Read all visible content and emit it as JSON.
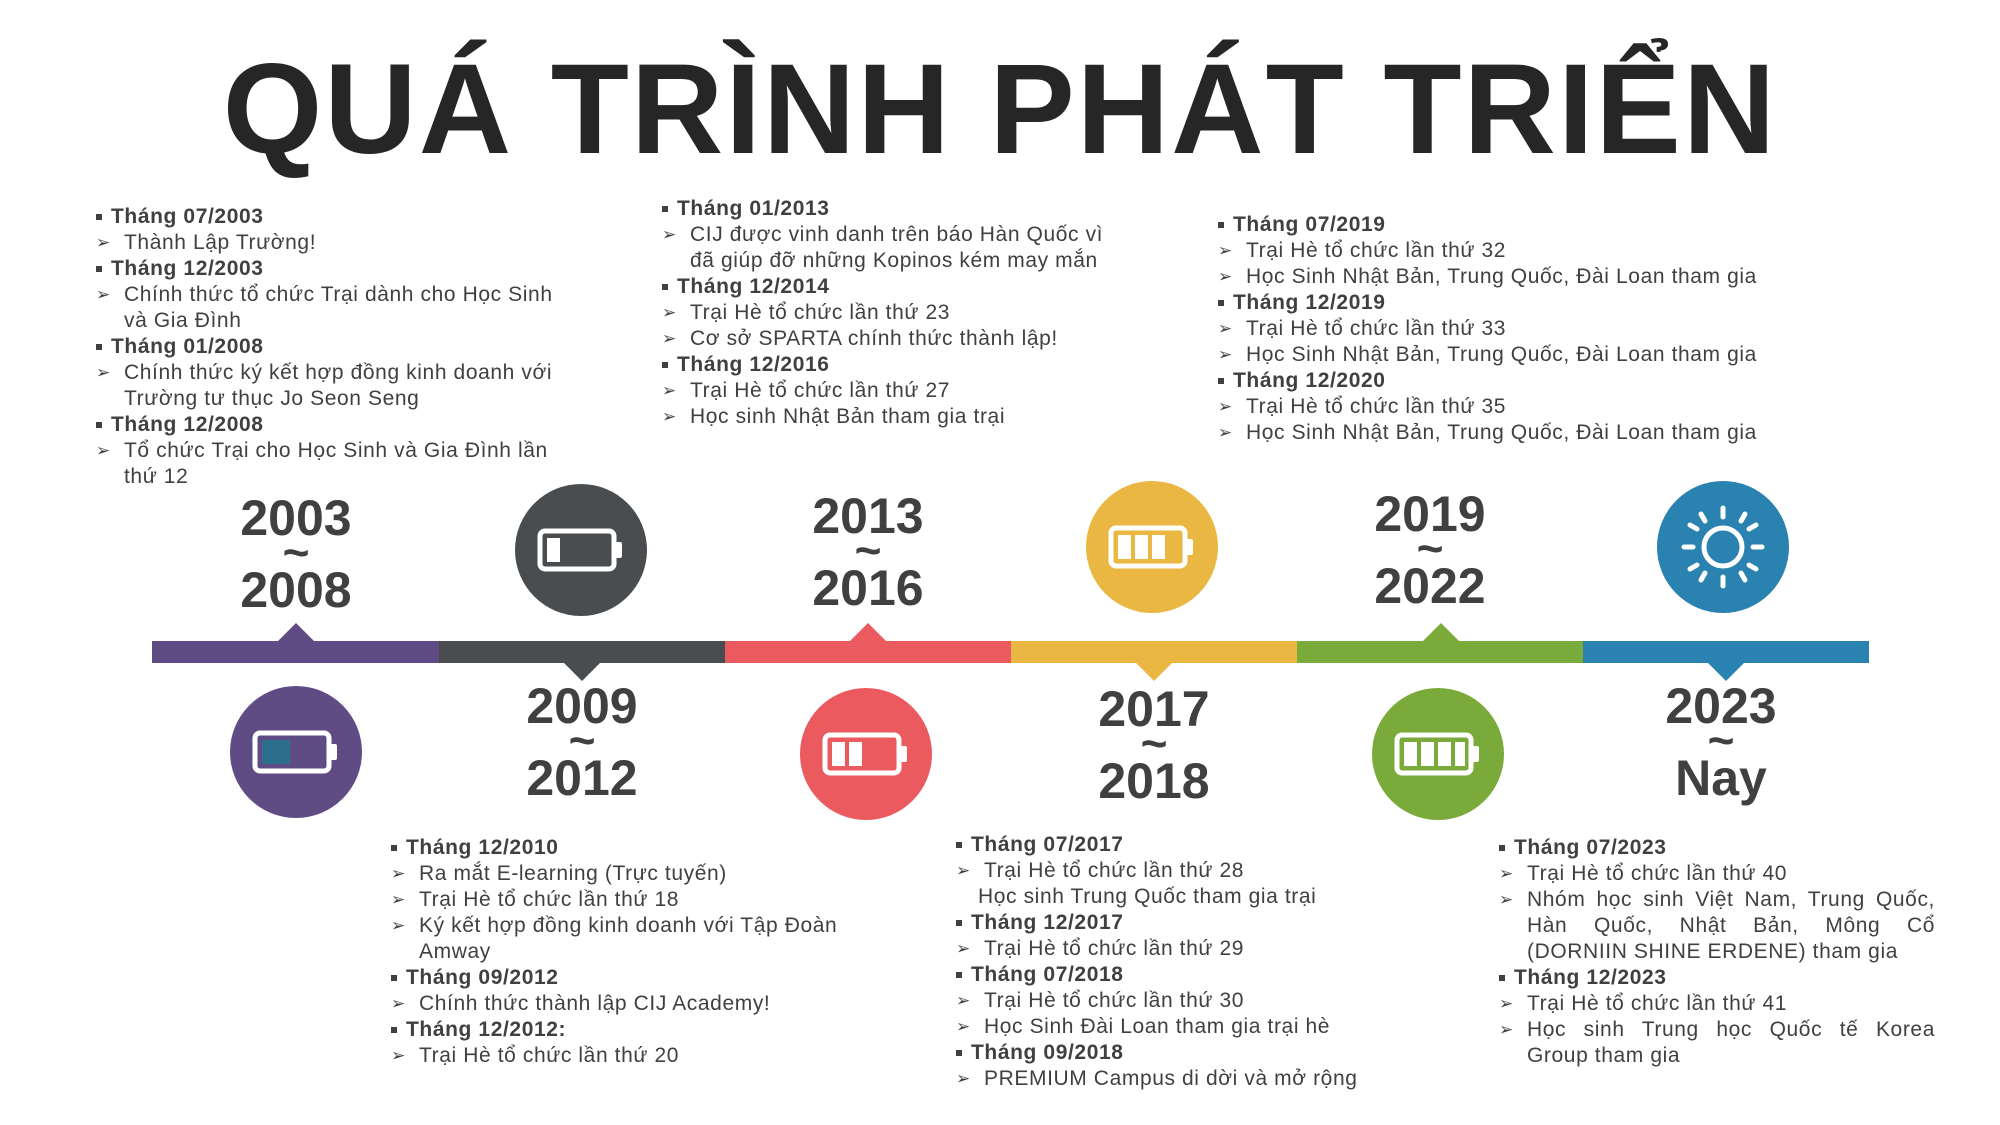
{
  "title": "QUÁ TRÌNH PHÁT TRIỂN",
  "colors": {
    "purple": "#604c84",
    "dark": "#4a4d50",
    "red": "#ea5a5e",
    "yellow": "#eab842",
    "green": "#7aab3a",
    "blue": "#2a82b0"
  },
  "periods": [
    {
      "start": "2003",
      "end": "2008",
      "icon": "battery-low-icon"
    },
    {
      "start": "2009",
      "end": "2012",
      "icon": "battery-low-icon"
    },
    {
      "start": "2013",
      "end": "2016",
      "icon": "battery-half-icon"
    },
    {
      "start": "2017",
      "end": "2018",
      "icon": "battery-three-quarter-icon"
    },
    {
      "start": "2019",
      "end": "2022",
      "icon": "battery-full-icon"
    },
    {
      "start": "2023",
      "end": "Nay",
      "icon": "sun-icon"
    }
  ],
  "tilde": "~",
  "events": {
    "p1": [
      {
        "date": "Tháng 07/2003",
        "items": [
          "Thành Lập Trường!"
        ]
      },
      {
        "date": "Tháng 12/2003",
        "items": [
          "Chính thức tổ chức Trại dành cho Học Sinh và Gia Đình"
        ]
      },
      {
        "date": "Tháng 01/2008",
        "items": [
          "Chính thức ký kết hợp đồng kinh doanh với Trường tư thục Jo Seon Seng"
        ]
      },
      {
        "date": "Tháng 12/2008",
        "items": [
          "Tổ chức Trại cho Học Sinh và Gia Đình lần thứ 12"
        ]
      }
    ],
    "p2": [
      {
        "date": "Tháng 12/2010",
        "items": [
          "Ra mắt E-learning (Trực tuyến)",
          "Trại Hè tổ chức lần thứ 18",
          "Ký kết hợp đồng kinh doanh với Tập Đoàn Amway"
        ]
      },
      {
        "date": "Tháng 09/2012",
        "items": [
          "Chính thức thành lập CIJ Academy!"
        ]
      },
      {
        "date": "Tháng 12/2012:",
        "items": [
          "Trại Hè tổ chức lần thứ 20"
        ]
      }
    ],
    "p3": [
      {
        "date": "Tháng 01/2013",
        "items": [
          "CIJ được vinh danh trên báo Hàn Quốc vì đã giúp đỡ những Kopinos kém may mắn"
        ]
      },
      {
        "date": "Tháng 12/2014",
        "items": [
          "Trại Hè tổ chức lần thứ 23",
          "Cơ sở SPARTA chính thức thành lập!"
        ]
      },
      {
        "date": "Tháng 12/2016",
        "items": [
          "Trại Hè tổ chức lần thứ 27",
          "Học sinh Nhật Bản tham gia trại"
        ]
      }
    ],
    "p4": [
      {
        "date": "Tháng  07/2017",
        "items": [
          "Trại Hè tổ chức lần thứ 28"
        ],
        "extra": "Học sinh Trung Quốc tham gia trại"
      },
      {
        "date": "Tháng 12/2017",
        "items": [
          "Trại Hè tổ chức lần thứ 29"
        ]
      },
      {
        "date": "Tháng 07/2018",
        "items": [
          "Trại Hè tổ chức lần thứ 30",
          "Học Sinh Đài Loan tham gia trại hè"
        ]
      },
      {
        "date": "Tháng 09/2018",
        "items": [
          "PREMIUM Campus di dời và mở rộng"
        ]
      }
    ],
    "p5": [
      {
        "date": "Tháng 07/2019",
        "items": [
          "Trại Hè tổ chức lần thứ 32",
          "Học Sinh Nhật Bản, Trung Quốc, Đài Loan tham gia"
        ]
      },
      {
        "date": "Tháng 12/2019",
        "items": [
          "Trại Hè tổ chức lần thứ 33",
          "Học Sinh Nhật Bản, Trung Quốc, Đài Loan tham gia"
        ]
      },
      {
        "date": "Tháng 12/2020",
        "items": [
          "Trại Hè tổ chức lần thứ 35",
          "Học Sinh Nhật Bản, Trung Quốc, Đài Loan tham gia"
        ]
      }
    ],
    "p6": [
      {
        "date": "Tháng 07/2023",
        "items": [
          "Trại Hè tổ chức lần thứ 40",
          "Nhóm học sinh Việt Nam, Trung Quốc, Hàn Quốc, Nhật Bản, Mông Cổ (DORNIIN SHINE ERDENE) tham gia"
        ]
      },
      {
        "date": "Tháng 12/2023",
        "items": [
          "Trại Hè tổ chức lần thứ 41",
          "Học sinh Trung học Quốc tế Korea Group tham gia"
        ]
      }
    ]
  }
}
